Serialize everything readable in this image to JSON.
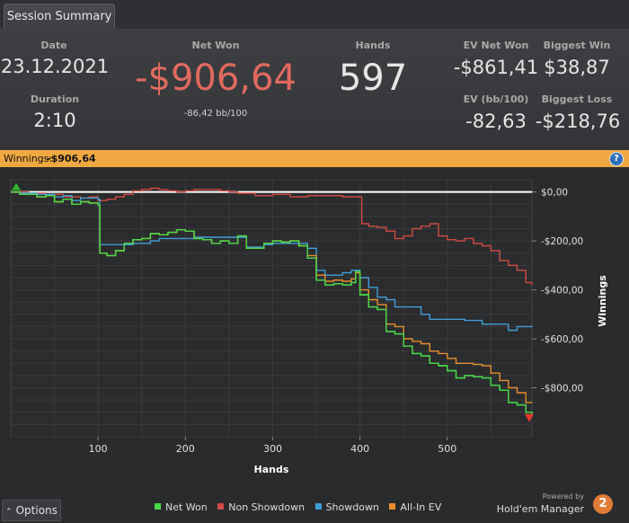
{
  "tab": {
    "label": "Session Summary"
  },
  "summary": {
    "date_label": "Date",
    "date_value": "23.12.2021",
    "duration_label": "Duration",
    "duration_value": "2:10",
    "net_won_label": "Net Won",
    "net_won_value": "-$906,64",
    "net_won_sub": "-86,42 bb/100",
    "hands_label": "Hands",
    "hands_value": "597",
    "ev_net_won_label": "EV Net Won",
    "ev_net_won_value": "-$861,41",
    "ev_bb_label": "EV (bb/100)",
    "ev_bb_value": "-82,63",
    "biggest_win_label": "Biggest Win",
    "biggest_win_value": "$38,87",
    "biggest_loss_label": "Biggest Loss",
    "biggest_loss_value": "-$218,76"
  },
  "strip": {
    "label": "Winnings:",
    "value": "-$906,64",
    "help": "?"
  },
  "colors": {
    "net_won": "#48d848",
    "non_showdown": "#d24a42",
    "showdown": "#3f9ed8",
    "allin_ev": "#e8902f",
    "negative": "#e06a5e",
    "strip": "#f0a840"
  },
  "chart_data": {
    "type": "line",
    "xlabel": "Hands",
    "ylabel": "Winnings",
    "xlim": [
      0,
      597
    ],
    "ylim": [
      -1000,
      50
    ],
    "x_ticks": [
      100,
      200,
      300,
      400,
      500
    ],
    "x_tick_labels": [
      "100",
      "200",
      "300",
      "400",
      "500"
    ],
    "y_ticks": [
      0,
      -200,
      -400,
      -600,
      -800
    ],
    "y_tick_labels": [
      "$0,00",
      "-$200,00",
      "-$400,00",
      "-$600,00",
      "-$800,00"
    ],
    "grid": true,
    "legend_position": "bottom",
    "series": [
      {
        "name": "Net Won",
        "key": "net_won",
        "points": [
          [
            0,
            0
          ],
          [
            10,
            -10
          ],
          [
            20,
            -10
          ],
          [
            30,
            -20
          ],
          [
            40,
            -15
          ],
          [
            50,
            -40
          ],
          [
            60,
            -30
          ],
          [
            70,
            -50
          ],
          [
            80,
            -40
          ],
          [
            90,
            -45
          ],
          [
            100,
            -55
          ],
          [
            102,
            -250
          ],
          [
            110,
            -260
          ],
          [
            120,
            -240
          ],
          [
            130,
            -210
          ],
          [
            140,
            -195
          ],
          [
            150,
            -190
          ],
          [
            160,
            -170
          ],
          [
            170,
            -175
          ],
          [
            180,
            -165
          ],
          [
            190,
            -155
          ],
          [
            200,
            -160
          ],
          [
            210,
            -190
          ],
          [
            220,
            -195
          ],
          [
            230,
            -210
          ],
          [
            240,
            -200
          ],
          [
            250,
            -210
          ],
          [
            260,
            -180
          ],
          [
            270,
            -230
          ],
          [
            280,
            -230
          ],
          [
            290,
            -210
          ],
          [
            300,
            -200
          ],
          [
            310,
            -205
          ],
          [
            320,
            -200
          ],
          [
            330,
            -220
          ],
          [
            340,
            -270
          ],
          [
            350,
            -360
          ],
          [
            360,
            -380
          ],
          [
            370,
            -375
          ],
          [
            380,
            -380
          ],
          [
            390,
            -370
          ],
          [
            395,
            -325
          ],
          [
            400,
            -420
          ],
          [
            410,
            -470
          ],
          [
            420,
            -480
          ],
          [
            430,
            -570
          ],
          [
            440,
            -580
          ],
          [
            450,
            -630
          ],
          [
            460,
            -660
          ],
          [
            470,
            -670
          ],
          [
            480,
            -700
          ],
          [
            490,
            -710
          ],
          [
            500,
            -730
          ],
          [
            510,
            -760
          ],
          [
            520,
            -750
          ],
          [
            530,
            -755
          ],
          [
            540,
            -760
          ],
          [
            550,
            -790
          ],
          [
            560,
            -810
          ],
          [
            570,
            -860
          ],
          [
            580,
            -870
          ],
          [
            590,
            -900
          ],
          [
            597,
            -906.64
          ]
        ]
      },
      {
        "name": "Non Showdown",
        "key": "non_showdown",
        "points": [
          [
            0,
            0
          ],
          [
            20,
            -5
          ],
          [
            40,
            -10
          ],
          [
            60,
            -20
          ],
          [
            80,
            -25
          ],
          [
            90,
            -20
          ],
          [
            100,
            -35
          ],
          [
            110,
            -30
          ],
          [
            120,
            -20
          ],
          [
            130,
            -10
          ],
          [
            140,
            5
          ],
          [
            150,
            10
          ],
          [
            160,
            15
          ],
          [
            170,
            10
          ],
          [
            180,
            5
          ],
          [
            190,
            0
          ],
          [
            200,
            5
          ],
          [
            210,
            10
          ],
          [
            230,
            10
          ],
          [
            240,
            5
          ],
          [
            250,
            0
          ],
          [
            260,
            -5
          ],
          [
            280,
            -15
          ],
          [
            300,
            -10
          ],
          [
            320,
            -20
          ],
          [
            340,
            -15
          ],
          [
            360,
            -15
          ],
          [
            380,
            -20
          ],
          [
            398,
            -20
          ],
          [
            402,
            -130
          ],
          [
            410,
            -140
          ],
          [
            420,
            -145
          ],
          [
            430,
            -160
          ],
          [
            440,
            -190
          ],
          [
            450,
            -180
          ],
          [
            460,
            -150
          ],
          [
            470,
            -140
          ],
          [
            480,
            -130
          ],
          [
            490,
            -180
          ],
          [
            500,
            -195
          ],
          [
            510,
            -200
          ],
          [
            520,
            -190
          ],
          [
            530,
            -210
          ],
          [
            540,
            -220
          ],
          [
            550,
            -240
          ],
          [
            560,
            -280
          ],
          [
            570,
            -300
          ],
          [
            580,
            -320
          ],
          [
            590,
            -370
          ],
          [
            597,
            -380
          ]
        ]
      },
      {
        "name": "Showdown",
        "key": "showdown",
        "points": [
          [
            0,
            0
          ],
          [
            10,
            -5
          ],
          [
            30,
            -10
          ],
          [
            50,
            -20
          ],
          [
            60,
            -15
          ],
          [
            70,
            -35
          ],
          [
            80,
            -25
          ],
          [
            100,
            -30
          ],
          [
            102,
            -215
          ],
          [
            120,
            -215
          ],
          [
            140,
            -210
          ],
          [
            160,
            -200
          ],
          [
            170,
            -190
          ],
          [
            200,
            -190
          ],
          [
            210,
            -185
          ],
          [
            230,
            -185
          ],
          [
            260,
            -185
          ],
          [
            270,
            -225
          ],
          [
            280,
            -225
          ],
          [
            290,
            -215
          ],
          [
            300,
            -210
          ],
          [
            320,
            -210
          ],
          [
            340,
            -230
          ],
          [
            350,
            -320
          ],
          [
            360,
            -340
          ],
          [
            380,
            -330
          ],
          [
            390,
            -320
          ],
          [
            400,
            -350
          ],
          [
            410,
            -390
          ],
          [
            420,
            -430
          ],
          [
            430,
            -440
          ],
          [
            440,
            -470
          ],
          [
            460,
            -470
          ],
          [
            470,
            -500
          ],
          [
            480,
            -520
          ],
          [
            500,
            -520
          ],
          [
            520,
            -525
          ],
          [
            540,
            -540
          ],
          [
            560,
            -540
          ],
          [
            570,
            -565
          ],
          [
            580,
            -550
          ],
          [
            597,
            -545
          ]
        ]
      },
      {
        "name": "All-In EV",
        "key": "allin_ev",
        "points": [
          [
            0,
            0
          ],
          [
            10,
            -10
          ],
          [
            20,
            -10
          ],
          [
            30,
            -20
          ],
          [
            40,
            -15
          ],
          [
            50,
            -40
          ],
          [
            60,
            -30
          ],
          [
            70,
            -50
          ],
          [
            80,
            -40
          ],
          [
            90,
            -45
          ],
          [
            100,
            -55
          ],
          [
            102,
            -250
          ],
          [
            110,
            -260
          ],
          [
            120,
            -240
          ],
          [
            130,
            -210
          ],
          [
            140,
            -195
          ],
          [
            150,
            -190
          ],
          [
            160,
            -170
          ],
          [
            170,
            -175
          ],
          [
            180,
            -165
          ],
          [
            190,
            -155
          ],
          [
            200,
            -160
          ],
          [
            210,
            -190
          ],
          [
            220,
            -195
          ],
          [
            230,
            -210
          ],
          [
            240,
            -200
          ],
          [
            250,
            -210
          ],
          [
            260,
            -180
          ],
          [
            270,
            -230
          ],
          [
            280,
            -230
          ],
          [
            290,
            -210
          ],
          [
            300,
            -200
          ],
          [
            310,
            -205
          ],
          [
            320,
            -200
          ],
          [
            330,
            -220
          ],
          [
            340,
            -260
          ],
          [
            350,
            -340
          ],
          [
            360,
            -365
          ],
          [
            370,
            -360
          ],
          [
            380,
            -365
          ],
          [
            390,
            -355
          ],
          [
            395,
            -330
          ],
          [
            400,
            -400
          ],
          [
            410,
            -440
          ],
          [
            420,
            -460
          ],
          [
            430,
            -540
          ],
          [
            440,
            -550
          ],
          [
            450,
            -600
          ],
          [
            460,
            -610
          ],
          [
            470,
            -620
          ],
          [
            480,
            -650
          ],
          [
            490,
            -660
          ],
          [
            500,
            -680
          ],
          [
            510,
            -700
          ],
          [
            520,
            -700
          ],
          [
            530,
            -705
          ],
          [
            540,
            -710
          ],
          [
            550,
            -740
          ],
          [
            560,
            -770
          ],
          [
            570,
            -800
          ],
          [
            580,
            -820
          ],
          [
            590,
            -860
          ],
          [
            597,
            -861.41
          ]
        ]
      }
    ]
  }
}
